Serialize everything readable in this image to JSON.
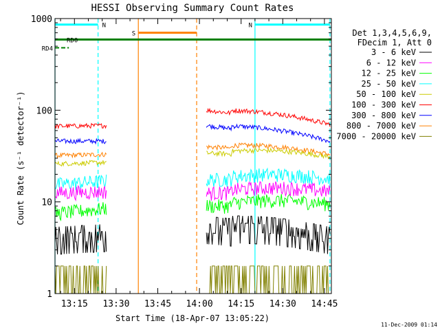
{
  "chart_data": {
    "type": "line",
    "title": "HESSI Observing Summary Count Rates",
    "xlabel": "Start Time (18-Apr-07 13:05:22)",
    "ylabel": "Count Rate (s⁻¹ detector⁻¹)",
    "ylog": true,
    "ylim": [
      1,
      1000
    ],
    "xlim_minutes": [
      788.0,
      887.5
    ],
    "x_ticks": [
      "13:15",
      "13:30",
      "13:45",
      "14:00",
      "14:15",
      "14:30",
      "14:45"
    ],
    "y_ticks": [
      "1",
      "10",
      "100",
      "1000"
    ],
    "timestamp": "11-Dec-2009 01:14",
    "legend_title": [
      "Det 1,3,4,5,6,9,",
      "FDecim 1, Att 0"
    ],
    "legend_placement": "right",
    "series": [
      {
        "name": "3 - 6 keV",
        "color": "#000000",
        "segments": [
          {
            "x": [
              788.0,
              806.5
            ],
            "y": [
              4.0,
              4.3
            ]
          },
          {
            "x": [
              842.5,
              887.0
            ],
            "y": [
              5.2,
              4.0
            ]
          }
        ]
      },
      {
        "name": "6 - 12 keV",
        "color": "#ff00ff",
        "segments": [
          {
            "x": [
              788.0,
              806.5
            ],
            "y": [
              12.5,
              13.0
            ]
          },
          {
            "x": [
              842.5,
              887.0
            ],
            "y": [
              12.5,
              13.0
            ]
          }
        ]
      },
      {
        "name": "12 - 25 keV",
        "color": "#00ff00",
        "segments": [
          {
            "x": [
              788.0,
              806.5
            ],
            "y": [
              7.5,
              8.5
            ]
          },
          {
            "x": [
              842.5,
              887.0
            ],
            "y": [
              9.0,
              9.5
            ]
          }
        ]
      },
      {
        "name": "25 - 50 keV",
        "color": "#00ffff",
        "segments": [
          {
            "x": [
              788.0,
              806.5
            ],
            "y": [
              15.5,
              17.0
            ]
          },
          {
            "x": [
              842.5,
              887.0
            ],
            "y": [
              17.5,
              18.0
            ]
          }
        ]
      },
      {
        "name": "50 - 100 keV",
        "color": "#cccc00",
        "segments": [
          {
            "x": [
              788.0,
              806.5
            ],
            "y": [
              26.0,
              27.0
            ]
          },
          {
            "x": [
              842.5,
              887.0
            ],
            "y": [
              34.0,
              31.0
            ]
          }
        ]
      },
      {
        "name": "100 - 300 keV",
        "color": "#ff0000",
        "segments": [
          {
            "x": [
              788.0,
              806.5
            ],
            "y": [
              67.0,
              68.0
            ]
          },
          {
            "x": [
              842.5,
              887.0
            ],
            "y": [
              100.0,
              70.0
            ]
          }
        ]
      },
      {
        "name": "300 - 800 keV",
        "color": "#0000ff",
        "segments": [
          {
            "x": [
              788.0,
              806.5
            ],
            "y": [
              46.0,
              46.0
            ]
          },
          {
            "x": [
              842.5,
              887.0
            ],
            "y": [
              68.0,
              46.0
            ]
          }
        ]
      },
      {
        "name": "800 - 7000 keV",
        "color": "#ff8000",
        "segments": [
          {
            "x": [
              788.0,
              806.5
            ],
            "y": [
              32.0,
              33.0
            ]
          },
          {
            "x": [
              842.5,
              887.0
            ],
            "y": [
              40.0,
              33.0
            ]
          }
        ]
      },
      {
        "name": "7000 - 20000 keV",
        "color": "#808000",
        "segments": [
          {
            "x": [
              788.0,
              806.5
            ],
            "y": [
              2.0,
              2.0
            ]
          },
          {
            "x": [
              842.5,
              887.0
            ],
            "y": [
              2.0,
              2.0
            ]
          }
        ]
      }
    ],
    "flags": [
      {
        "label": "N",
        "color": "#00ffff",
        "x_start": 788.0,
        "x_end": 803.5,
        "y": 860
      },
      {
        "label": "N",
        "color": "#00ffff",
        "x_start": 860.0,
        "x_end": 887.0,
        "y": 860
      },
      {
        "label": "S",
        "color": "#ff8000",
        "x_start": 818.0,
        "x_end": 839.0,
        "y": 700
      },
      {
        "label": "RD0",
        "color": "#008000",
        "x_start": 788.0,
        "x_end": 887.5,
        "y": 590
      },
      {
        "label": "RD4",
        "color": "#008000",
        "x_start": 788.0,
        "x_end": 793.0,
        "y": 480
      }
    ],
    "vlines": [
      {
        "x": 788.0,
        "color": "#00ffff",
        "dashed": false
      },
      {
        "x": 803.5,
        "color": "#00ffff",
        "dashed": true
      },
      {
        "x": 818.0,
        "color": "#ff8000",
        "dashed": false
      },
      {
        "x": 839.0,
        "color": "#ff8000",
        "dashed": true
      },
      {
        "x": 860.0,
        "color": "#00ffff",
        "dashed": false
      },
      {
        "x": 887.0,
        "color": "#00ffff",
        "dashed": true
      }
    ]
  }
}
